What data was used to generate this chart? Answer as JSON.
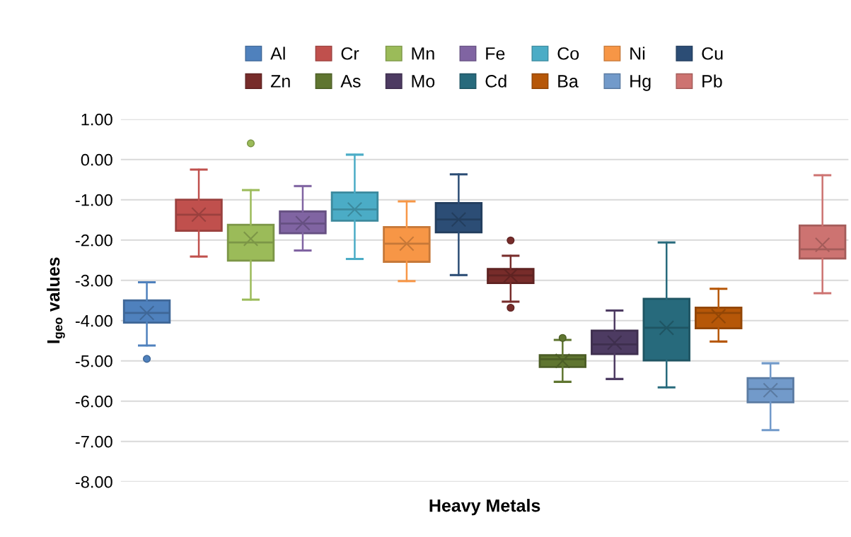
{
  "chart_data": {
    "type": "box",
    "xlabel": "Heavy Metals",
    "ylabel": "I$_{geo}$ values",
    "categories": [
      null
    ],
    "ylim": [
      -8,
      1
    ],
    "yticks": [
      {
        "value": 1,
        "label": "1.00"
      },
      {
        "value": 0,
        "label": "0.00"
      },
      {
        "value": -1,
        "label": "-1.00"
      },
      {
        "value": -2,
        "label": "-2.00"
      },
      {
        "value": -3,
        "label": "-3.00"
      },
      {
        "value": -4,
        "label": "-4.00"
      },
      {
        "value": -5,
        "label": "-5.00"
      },
      {
        "value": -6,
        "label": "-6.00"
      },
      {
        "value": -7,
        "label": "-7.00"
      },
      {
        "value": -8,
        "label": "-8.00"
      }
    ],
    "grid": "y",
    "legend": "top",
    "series": [
      {
        "name": "Al",
        "color": "#4f81bd",
        "boxes": [
          {
            "low": -4.62,
            "q1": -4.05,
            "median": -3.81,
            "q3": -3.5,
            "high": -3.05,
            "mean": -3.81,
            "outliers": [
              -4.95
            ]
          }
        ]
      },
      {
        "name": "Cr",
        "color": "#c0504d",
        "boxes": [
          {
            "low": -2.41,
            "q1": -1.77,
            "median": -1.37,
            "q3": -1.0,
            "high": -0.25,
            "mean": -1.37
          }
        ]
      },
      {
        "name": "Mn",
        "color": "#9bbb59",
        "boxes": [
          {
            "low": -3.48,
            "q1": -2.51,
            "median": -2.06,
            "q3": -1.62,
            "high": -0.76,
            "mean": -1.97,
            "outliers": [
              0.4
            ]
          }
        ]
      },
      {
        "name": "Fe",
        "color": "#8064a2",
        "boxes": [
          {
            "low": -2.26,
            "q1": -1.83,
            "median": -1.59,
            "q3": -1.29,
            "high": -0.66,
            "mean": -1.58
          }
        ]
      },
      {
        "name": "Co",
        "color": "#4bacc6",
        "boxes": [
          {
            "low": -2.47,
            "q1": -1.52,
            "median": -1.24,
            "q3": -0.82,
            "high": 0.12,
            "mean": -1.24
          }
        ]
      },
      {
        "name": "Ni",
        "color": "#f79646",
        "boxes": [
          {
            "low": -3.02,
            "q1": -2.54,
            "median": -2.09,
            "q3": -1.68,
            "high": -1.04,
            "mean": -2.09
          }
        ]
      },
      {
        "name": "Cu",
        "color": "#2c4d75",
        "boxes": [
          {
            "low": -2.87,
            "q1": -1.81,
            "median": -1.49,
            "q3": -1.08,
            "high": -0.37,
            "mean": -1.49
          }
        ]
      },
      {
        "name": "Zn",
        "color": "#772c2a",
        "boxes": [
          {
            "low": -3.53,
            "q1": -3.07,
            "median": -2.88,
            "q3": -2.72,
            "high": -2.39,
            "mean": -2.88,
            "outliers": [
              -2.01,
              -3.68
            ]
          }
        ]
      },
      {
        "name": "As",
        "color": "#5f7530",
        "boxes": [
          {
            "low": -5.52,
            "q1": -5.15,
            "median": -4.96,
            "q3": -4.86,
            "high": -4.48,
            "mean": -5.0,
            "outliers": [
              -4.43
            ]
          }
        ]
      },
      {
        "name": "Mo",
        "color": "#4d3b62",
        "boxes": [
          {
            "low": -5.45,
            "q1": -4.83,
            "median": -4.59,
            "q3": -4.25,
            "high": -3.75,
            "mean": -4.55
          }
        ]
      },
      {
        "name": "Cd",
        "color": "#276a7c",
        "boxes": [
          {
            "low": -5.66,
            "q1": -4.99,
            "median": -4.18,
            "q3": -3.46,
            "high": -2.06,
            "mean": -4.18
          }
        ]
      },
      {
        "name": "Ba",
        "color": "#b65708",
        "boxes": [
          {
            "low": -4.52,
            "q1": -4.19,
            "median": -3.81,
            "q3": -3.68,
            "high": -3.21,
            "mean": -3.89
          }
        ]
      },
      {
        "name": "Hg",
        "color": "#729aca",
        "boxes": [
          {
            "low": -6.72,
            "q1": -6.03,
            "median": -5.7,
            "q3": -5.43,
            "high": -5.06,
            "mean": -5.73
          }
        ]
      },
      {
        "name": "Pb",
        "color": "#cd7371",
        "boxes": [
          {
            "low": -3.32,
            "q1": -2.46,
            "median": -2.23,
            "q3": -1.64,
            "high": -0.39,
            "mean": -2.12
          }
        ]
      }
    ]
  }
}
